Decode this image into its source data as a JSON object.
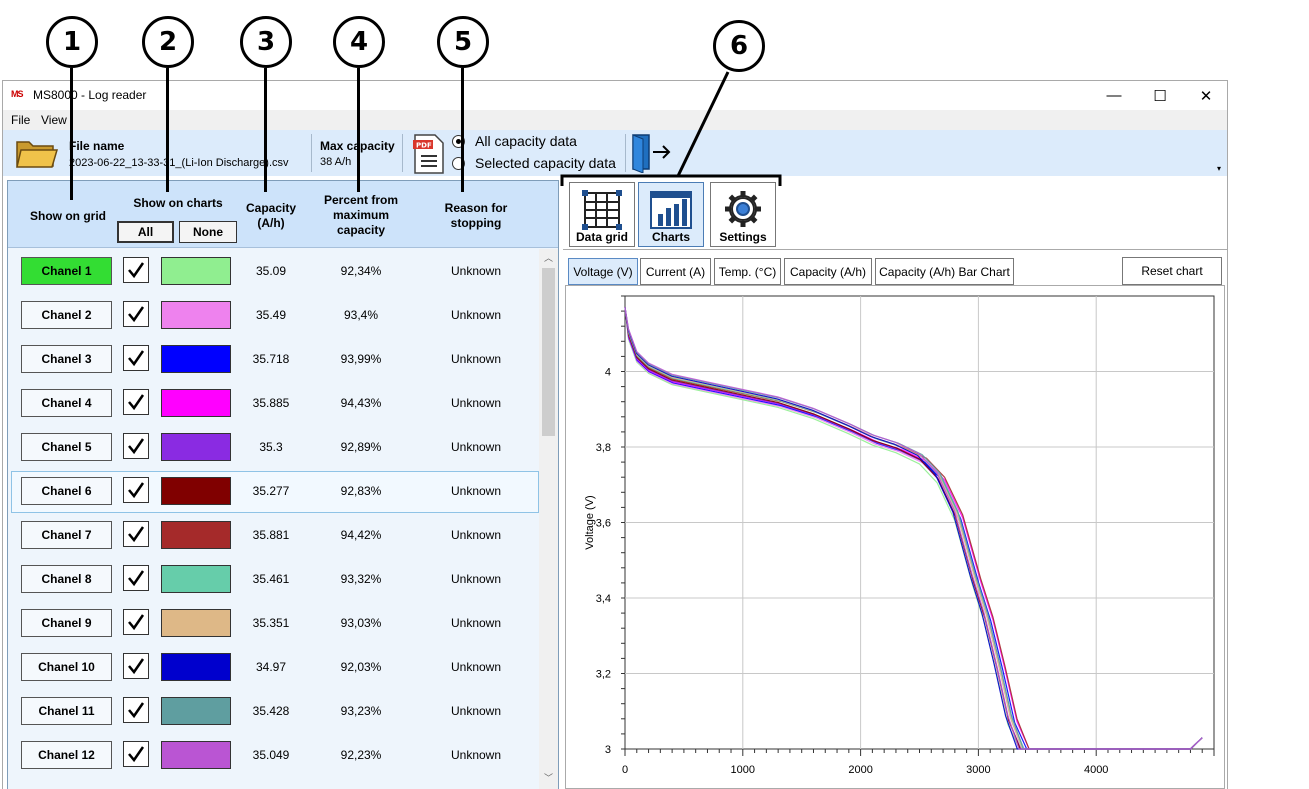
{
  "app": {
    "title": "MS8000 - Log reader",
    "icon_name": "app-logo-icon"
  },
  "window_controls": {
    "minimize": "—",
    "maximize": "☐",
    "close": "✕"
  },
  "menu": [
    {
      "label": "File"
    },
    {
      "label": "View"
    }
  ],
  "toolbar": {
    "file_name_label": "File name",
    "file_name_value": "2023-06-22_13-33-31_(Li-Ion Discharge).csv",
    "max_capacity_label": "Max capacity",
    "max_capacity_value": "38 A/h",
    "radio_all": "All capacity data",
    "radio_selected": "Selected capacity data",
    "radio_all_checked": true
  },
  "callouts": [
    "1",
    "2",
    "3",
    "4",
    "5",
    "6"
  ],
  "grid": {
    "headers": {
      "show_on_grid": "Show on grid",
      "show_on_charts": "Show on charts",
      "capacity": "Capacity\n(A/h)",
      "percent": "Percent from\nmaximum\ncapacity",
      "reason": "Reason for\nstopping"
    },
    "all_button": "All",
    "none_button": "None",
    "rows": [
      {
        "channel": "Chanel 1",
        "checked": true,
        "color": "#90ee90",
        "capacity": "35.09",
        "percent": "92,34%",
        "reason": "Unknown",
        "active": true
      },
      {
        "channel": "Chanel 2",
        "checked": true,
        "color": "#ee82ee",
        "capacity": "35.49",
        "percent": "93,4%",
        "reason": "Unknown"
      },
      {
        "channel": "Chanel 3",
        "checked": true,
        "color": "#0000ff",
        "capacity": "35.718",
        "percent": "93,99%",
        "reason": "Unknown"
      },
      {
        "channel": "Chanel 4",
        "checked": true,
        "color": "#ff00ff",
        "capacity": "35.885",
        "percent": "94,43%",
        "reason": "Unknown"
      },
      {
        "channel": "Chanel 5",
        "checked": true,
        "color": "#8a2be2",
        "capacity": "35.3",
        "percent": "92,89%",
        "reason": "Unknown"
      },
      {
        "channel": "Chanel 6",
        "checked": true,
        "color": "#800000",
        "capacity": "35.277",
        "percent": "92,83%",
        "reason": "Unknown",
        "selected": true
      },
      {
        "channel": "Chanel 7",
        "checked": true,
        "color": "#a52a2a",
        "capacity": "35.881",
        "percent": "94,42%",
        "reason": "Unknown"
      },
      {
        "channel": "Chanel 8",
        "checked": true,
        "color": "#66cdaa",
        "capacity": "35.461",
        "percent": "93,32%",
        "reason": "Unknown"
      },
      {
        "channel": "Chanel 9",
        "checked": true,
        "color": "#deb887",
        "capacity": "35.351",
        "percent": "93,03%",
        "reason": "Unknown"
      },
      {
        "channel": "Chanel 10",
        "checked": true,
        "color": "#0000cd",
        "capacity": "34.97",
        "percent": "92,03%",
        "reason": "Unknown"
      },
      {
        "channel": "Chanel 11",
        "checked": true,
        "color": "#5f9ea0",
        "capacity": "35.428",
        "percent": "93,23%",
        "reason": "Unknown"
      },
      {
        "channel": "Chanel 12",
        "checked": true,
        "color": "#ba55d3",
        "capacity": "35.049",
        "percent": "92,23%",
        "reason": "Unknown"
      }
    ]
  },
  "views": [
    {
      "label": "Data grid",
      "icon": "grid-icon"
    },
    {
      "label": "Charts",
      "icon": "bar-chart-icon",
      "active": true
    },
    {
      "label": "Settings",
      "icon": "gear-icon"
    }
  ],
  "chart_tabs": [
    {
      "label": "Voltage (V)",
      "active": true
    },
    {
      "label": "Current (A)"
    },
    {
      "label": "Temp. (°C)"
    },
    {
      "label": "Capacity (A/h)"
    },
    {
      "label": "Capacity (A/h) Bar Chart"
    }
  ],
  "reset_chart": "Reset chart",
  "chart_data": {
    "type": "line",
    "title": "",
    "xlabel": "",
    "ylabel": "Voltage (V)",
    "xlim": [
      0,
      5000
    ],
    "ylim": [
      3,
      4.2
    ],
    "xticks": [
      "0",
      "1000",
      "2000",
      "3000",
      "4000"
    ],
    "yticks": [
      "3",
      "3,2",
      "3,4",
      "3,6",
      "3,8",
      "4"
    ],
    "grid": true,
    "series_shape": {
      "x": [
        0,
        30,
        100,
        200,
        400,
        700,
        1000,
        1300,
        1600,
        1900,
        2100,
        2300,
        2500,
        2650,
        2800,
        2950,
        3050,
        3150,
        3250,
        3350,
        3400,
        4800,
        4900
      ],
      "y": [
        4.17,
        4.1,
        4.04,
        4.01,
        3.98,
        3.96,
        3.94,
        3.92,
        3.89,
        3.85,
        3.82,
        3.8,
        3.77,
        3.72,
        3.62,
        3.45,
        3.35,
        3.22,
        3.08,
        3.0,
        3.0,
        3.0,
        3.03
      ]
    },
    "series": [
      {
        "color": "#90ee90",
        "x_end": 3350
      },
      {
        "color": "#ee82ee",
        "x_end": 3390
      },
      {
        "color": "#0000ff",
        "x_end": 3410
      },
      {
        "color": "#ff00ff",
        "x_end": 3430
      },
      {
        "color": "#8a2be2",
        "x_end": 3360
      },
      {
        "color": "#800000",
        "x_end": 3355
      },
      {
        "color": "#a52a2a",
        "x_end": 3430
      },
      {
        "color": "#66cdaa",
        "x_end": 3385
      },
      {
        "color": "#deb887",
        "x_end": 3370
      },
      {
        "color": "#0000cd",
        "x_end": 3330
      },
      {
        "color": "#5f9ea0",
        "x_end": 3380
      },
      {
        "color": "#ba55d3",
        "x_end": 3345
      }
    ]
  }
}
